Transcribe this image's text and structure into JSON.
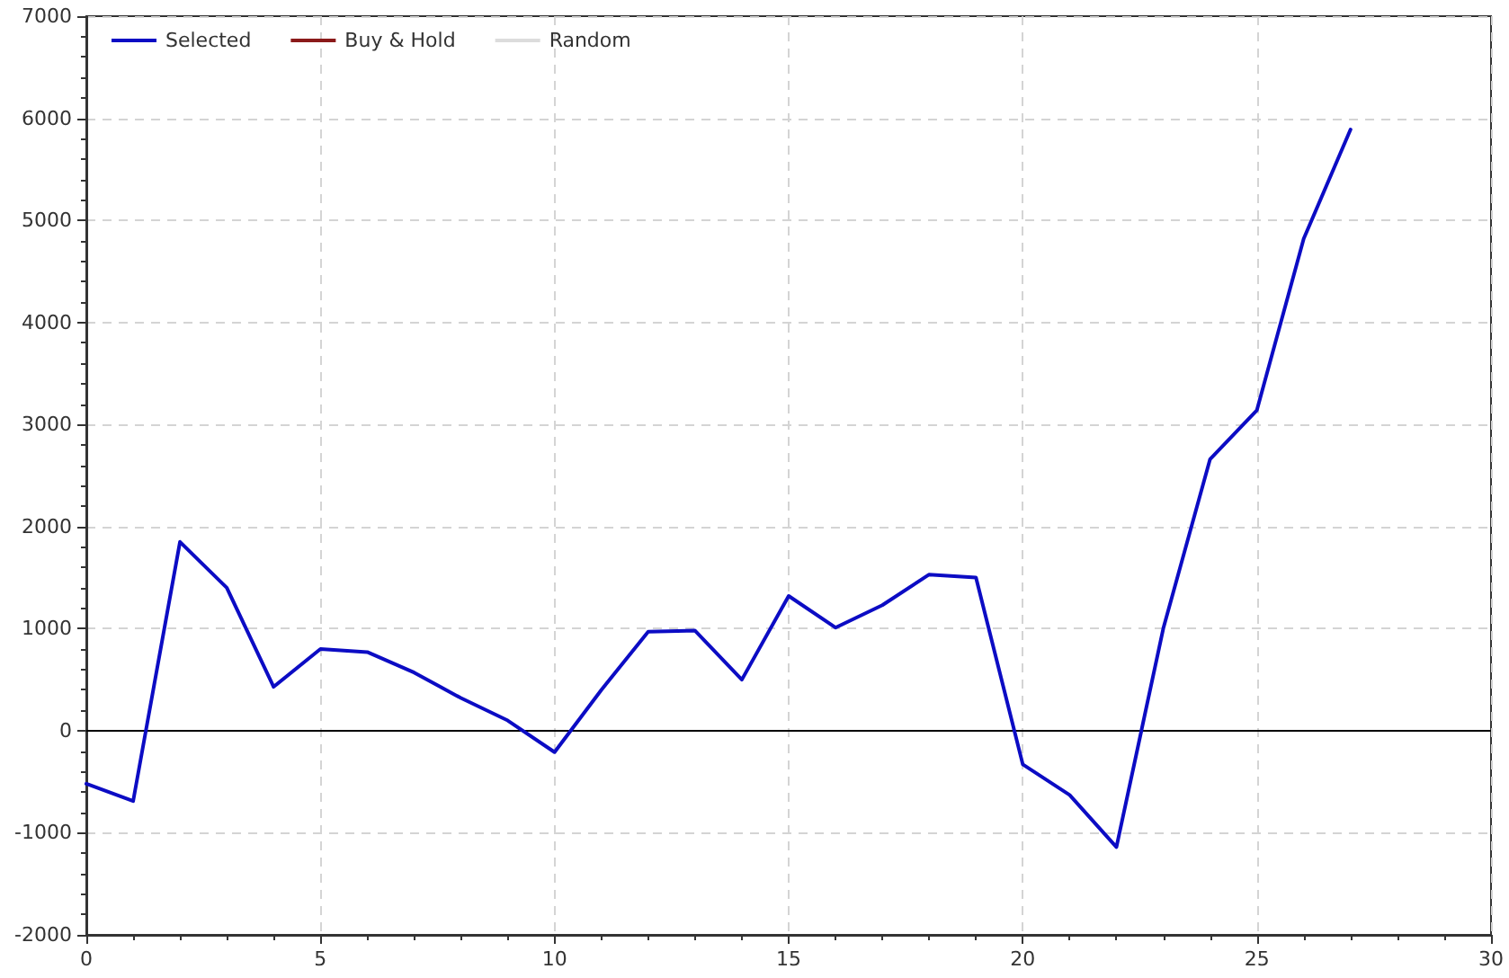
{
  "chart_data": {
    "type": "line",
    "x": [
      0,
      1,
      2,
      3,
      4,
      5,
      6,
      7,
      8,
      9,
      10,
      11,
      12,
      13,
      14,
      15,
      16,
      17,
      18,
      19,
      20,
      21,
      22,
      23,
      24,
      25,
      26,
      27
    ],
    "series": [
      {
        "name": "Selected",
        "color": "#0c0cc4",
        "values": [
          -520,
          -690,
          1850,
          1400,
          430,
          800,
          770,
          570,
          320,
          100,
          -210,
          400,
          970,
          980,
          500,
          1320,
          1010,
          1230,
          1530,
          1500,
          -330,
          -630,
          -1140,
          1000,
          2660,
          3140,
          4820,
          5890
        ]
      },
      {
        "name": "Buy & Hold",
        "color": "#8b1a1a",
        "values": [
          null,
          null,
          null,
          null,
          null,
          null,
          null,
          null,
          null,
          null,
          null,
          null,
          null,
          null,
          null,
          null,
          null,
          null,
          null,
          null,
          null,
          null,
          null,
          null,
          null,
          null,
          null,
          null
        ]
      },
      {
        "name": "Random",
        "color": "#dcdcdc",
        "values": [
          null,
          null,
          null,
          null,
          null,
          null,
          null,
          null,
          null,
          null,
          null,
          null,
          null,
          null,
          null,
          null,
          null,
          null,
          null,
          null,
          null,
          null,
          null,
          null,
          null,
          null,
          null,
          null
        ]
      }
    ],
    "xlim": [
      0,
      30
    ],
    "xticks": [
      0,
      5,
      10,
      15,
      20,
      25,
      30
    ],
    "ylim": [
      -2000,
      7000
    ],
    "yticks": [
      -2000,
      -1000,
      0,
      1000,
      2000,
      3000,
      4000,
      5000,
      6000,
      7000
    ],
    "ref_lines": [
      {
        "axis": "y",
        "value": 0,
        "color": "#000000"
      }
    ],
    "grid": true,
    "legend": "top left",
    "marker": "none",
    "line_style": "solid"
  }
}
